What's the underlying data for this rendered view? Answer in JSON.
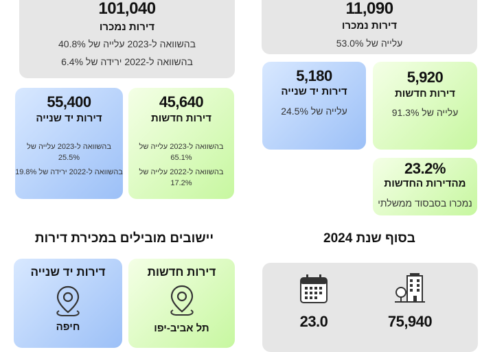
{
  "top_left": {
    "value": "101,040",
    "label": "דירות נמכרו",
    "line1": "בהשוואה ל-2023 עלייה של 40.8%",
    "line2": "בהשוואה ל-2022 ירידה של 6.4%"
  },
  "top_right": {
    "value": "11,090",
    "label": "דירות נמכרו",
    "line1": "עלייה של 53.0%"
  },
  "secondhand_left": {
    "value": "55,400",
    "label": "דירות יד שנייה",
    "line1": "בהשוואה ל-2023 עלייה של 25.5%",
    "line2": "בהשוואה ל-2022 ירידה של 19.8%"
  },
  "new_left": {
    "value": "45,640",
    "label": "דירות חדשות",
    "line1": "בהשוואה ל-2023 עלייה של  65.1%",
    "line2": "בהשוואה ל-2022 עלייה של 17.2%"
  },
  "secondhand_right": {
    "value": "5,180",
    "label": "דירות יד שנייה",
    "line1": "עלייה של 24.5%"
  },
  "new_right": {
    "value": "5,920",
    "label": "דירות חדשות",
    "line1": "עלייה של 91.3%"
  },
  "subsidy": {
    "value": "23.2%",
    "label": "מהדירות החדשות",
    "line1": "נמכרו בסבסוד ממשלתי"
  },
  "heading_left": "יישובים מובילים במכירת דירות",
  "heading_right": "בסוף שנת 2024",
  "lead_secondhand": {
    "label": "דירות יד שנייה",
    "city": "חיפה",
    "icon": "location-pin-icon"
  },
  "lead_new": {
    "label": "דירות חדשות",
    "city": "תל אביב-יפו",
    "icon": "location-pin-icon"
  },
  "stock": {
    "buildings_value": "75,940",
    "buildings_icon": "buildings-icon",
    "months_value": "23.0",
    "months_icon": "calendar-icon"
  },
  "colors": {
    "gray": "#e6e6e6",
    "green": "#c7f7a0",
    "blue": "#9cc0f7"
  }
}
